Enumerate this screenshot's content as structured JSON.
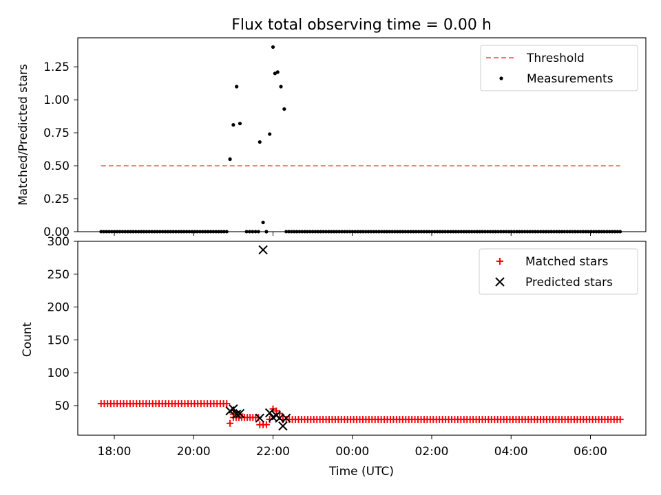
{
  "chart_data": {
    "type": "scatter",
    "title": "Flux total observing time = 0.00 h",
    "xlabel": "Time (UTC)",
    "x_ticks": [
      "18:00",
      "20:00",
      "22:00",
      "00:00",
      "02:00",
      "04:00",
      "06:00"
    ],
    "colors": {
      "threshold": "#ff7070",
      "measurements": "#000000",
      "matched": "#ff0000",
      "predicted": "#000000"
    },
    "panels": [
      {
        "ylabel": "Matched/Predicted stars",
        "ylim": [
          0,
          1.47
        ],
        "y_ticks": [
          "0.00",
          "0.25",
          "0.50",
          "0.75",
          "1.00",
          "1.25"
        ],
        "legend": [
          "Threshold",
          "Measurements"
        ],
        "legend_position": "upper right",
        "threshold": {
          "value": 0.5,
          "x_start": "17:40",
          "x_end": "06:45"
        },
        "measurements": {
          "baseline_segments": [
            {
              "start": "17:40",
              "end": "20:50",
              "count": 48,
              "value": 0
            },
            {
              "start": "21:20",
              "end": "21:38",
              "count": 5,
              "value": 0
            },
            {
              "start": "22:20",
              "end": "06:45",
              "count": 127,
              "value": 0
            }
          ],
          "points": [
            {
              "x": "20:55",
              "y": 0.55
            },
            {
              "x": "21:00",
              "y": 0.81
            },
            {
              "x": "21:05",
              "y": 1.1
            },
            {
              "x": "21:10",
              "y": 0.82
            },
            {
              "x": "21:40",
              "y": 0.68
            },
            {
              "x": "21:45",
              "y": 0.07
            },
            {
              "x": "21:50",
              "y": 0.0
            },
            {
              "x": "21:55",
              "y": 0.74
            },
            {
              "x": "22:00",
              "y": 1.4
            },
            {
              "x": "22:03",
              "y": 1.2
            },
            {
              "x": "22:07",
              "y": 1.21
            },
            {
              "x": "22:12",
              "y": 1.1
            },
            {
              "x": "22:17",
              "y": 0.93
            }
          ]
        }
      },
      {
        "ylabel": "Count",
        "ylim": [
          5,
          300
        ],
        "y_ticks": [
          "50",
          "100",
          "150",
          "200",
          "250",
          "300"
        ],
        "legend": [
          "Matched stars",
          "Predicted stars"
        ],
        "legend_position": "upper right",
        "matched": {
          "segments": [
            {
              "start": "17:40",
              "end": "20:50",
              "count": 40,
              "value": 53
            },
            {
              "start": "21:00",
              "end": "21:38",
              "count": 10,
              "value": 32
            },
            {
              "start": "22:20",
              "end": "06:45",
              "count": 110,
              "value": 29
            }
          ],
          "points": [
            {
              "x": "20:55",
              "y": 23
            },
            {
              "x": "21:00",
              "y": 37
            },
            {
              "x": "21:05",
              "y": 38
            },
            {
              "x": "21:10",
              "y": 37
            },
            {
              "x": "21:40",
              "y": 21
            },
            {
              "x": "21:45",
              "y": 21
            },
            {
              "x": "21:50",
              "y": 21
            },
            {
              "x": "21:55",
              "y": 29
            },
            {
              "x": "22:00",
              "y": 45
            },
            {
              "x": "22:05",
              "y": 42
            },
            {
              "x": "22:10",
              "y": 38
            },
            {
              "x": "22:15",
              "y": 29
            }
          ]
        },
        "predicted": {
          "points": [
            {
              "x": "20:55",
              "y": 42
            },
            {
              "x": "21:00",
              "y": 45
            },
            {
              "x": "21:05",
              "y": 37
            },
            {
              "x": "21:10",
              "y": 38
            },
            {
              "x": "21:40",
              "y": 31
            },
            {
              "x": "21:45",
              "y": 287
            },
            {
              "x": "21:55",
              "y": 39
            },
            {
              "x": "22:00",
              "y": 32
            },
            {
              "x": "22:05",
              "y": 35
            },
            {
              "x": "22:10",
              "y": 31
            },
            {
              "x": "22:15",
              "y": 19
            },
            {
              "x": "22:20",
              "y": 31
            }
          ]
        }
      }
    ]
  }
}
